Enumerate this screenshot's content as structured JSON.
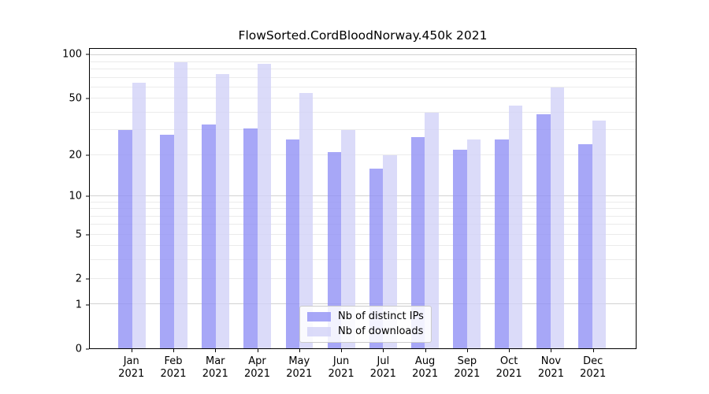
{
  "chart_data": {
    "type": "bar",
    "title": "FlowSorted.CordBloodNorway.450k 2021",
    "categories": [
      "Jan 2021",
      "Feb 2021",
      "Mar 2021",
      "Apr 2021",
      "May 2021",
      "Jun 2021",
      "Jul 2021",
      "Aug 2021",
      "Sep 2021",
      "Oct 2021",
      "Nov 2021",
      "Dec 2021"
    ],
    "series": [
      {
        "name": "Nb of distinct IPs",
        "color": "rgba(145,145,245,0.8)",
        "values": [
          30,
          28,
          33,
          31,
          26,
          21,
          16,
          27,
          22,
          26,
          39,
          24
        ]
      },
      {
        "name": "Nb of downloads",
        "color": "rgba(210,210,248,0.8)",
        "values": [
          65,
          90,
          74,
          88,
          55,
          30,
          20,
          40,
          26,
          45,
          60,
          35
        ]
      }
    ],
    "xlabel": "",
    "ylabel": "",
    "yscale": "log1p",
    "ylim": [
      0,
      111
    ],
    "yticks": [
      0,
      1,
      2,
      5,
      10,
      20,
      50,
      100
    ],
    "ytick_labels": [
      "0",
      "1",
      "2",
      "5",
      "10",
      "20",
      "50",
      "100"
    ],
    "grid_major": [
      1,
      10,
      100
    ],
    "grid_minor": [
      2,
      3,
      4,
      5,
      6,
      7,
      8,
      9,
      20,
      30,
      40,
      50,
      60,
      70,
      80,
      90
    ],
    "grid": true,
    "legend_position": "lower center",
    "colors": {
      "distinct_ips": "#a7a7f7",
      "downloads": "#dbdbf9",
      "grid_major": "#d2d2d2",
      "grid_minor": "#ebebeb",
      "spine": "#000000"
    }
  }
}
